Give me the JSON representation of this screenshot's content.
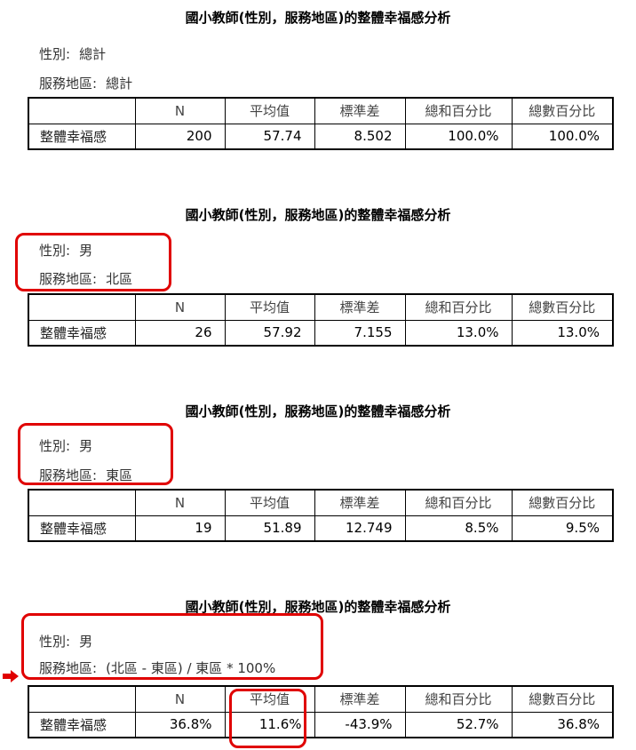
{
  "title": "國小教師(性別，服務地區)的整體幸福感分析",
  "gender_label": "性別:",
  "region_label": "服務地區:",
  "columns": [
    "",
    "N",
    "平均值",
    "標準差",
    "總和百分比",
    "總數百分比"
  ],
  "sections": [
    {
      "gender": "總計",
      "region": "總計",
      "row": {
        "label": "整體幸福感",
        "n": "200",
        "mean": "57.74",
        "sd": "8.502",
        "sum_pct": "100.0%",
        "count_pct": "100.0%"
      }
    },
    {
      "gender": "男",
      "region": "北區",
      "row": {
        "label": "整體幸福感",
        "n": "26",
        "mean": "57.92",
        "sd": "7.155",
        "sum_pct": "13.0%",
        "count_pct": "13.0%"
      }
    },
    {
      "gender": "男",
      "region": "東區",
      "row": {
        "label": "整體幸福感",
        "n": "19",
        "mean": "51.89",
        "sd": "12.749",
        "sum_pct": "8.5%",
        "count_pct": "9.5%"
      }
    },
    {
      "gender": "男",
      "region": "(北區 - 東區) / 東區 * 100%",
      "row": {
        "label": "整體幸福感",
        "n": "36.8%",
        "mean": "11.6%",
        "sd": "-43.9%",
        "sum_pct": "52.7%",
        "count_pct": "36.8%"
      }
    }
  ],
  "colors": {
    "highlight": "#e00000",
    "arrow": "#e00000"
  },
  "icons": {
    "pointer": "right-arrow-icon"
  }
}
